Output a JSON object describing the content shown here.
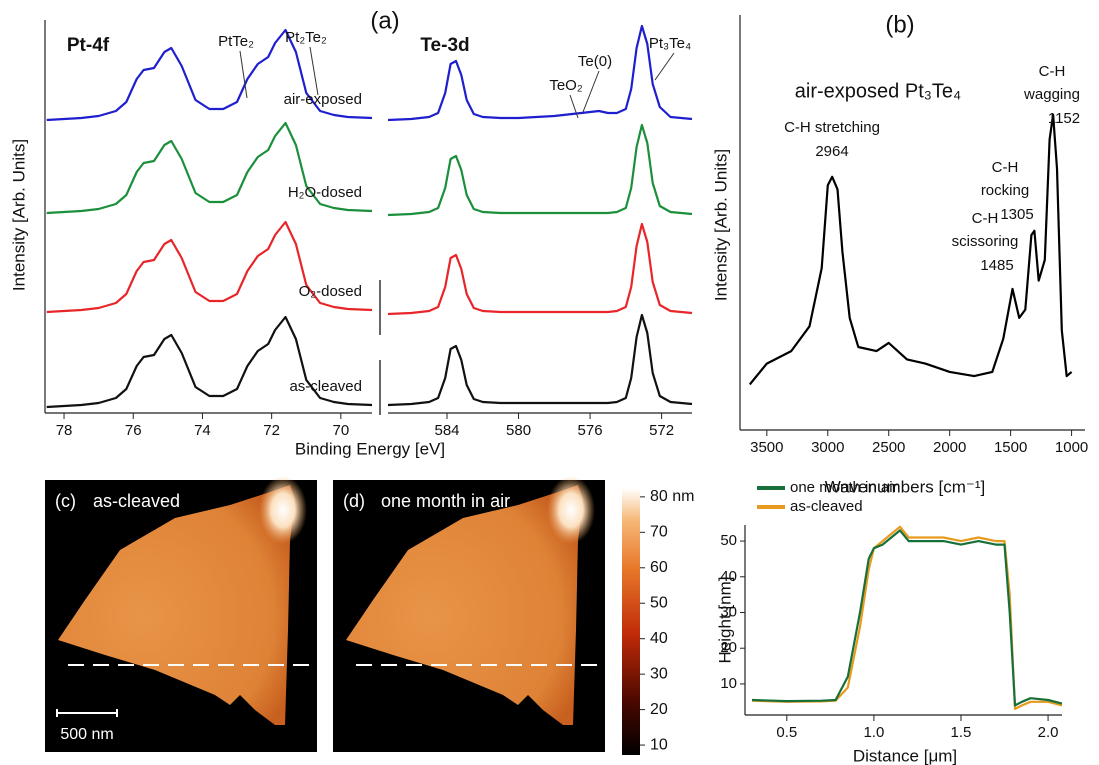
{
  "chart_data": [
    {
      "type": "line",
      "panel_label": "(a)",
      "title": "Pt-4f",
      "xlabel": "Binding Energy [eV]",
      "ylabel": "Intensity [Arb. Units]",
      "x": [
        78.5,
        78,
        77.5,
        77,
        76.5,
        76.2,
        75.9,
        75.7,
        75.4,
        75.1,
        74.9,
        74.6,
        74.2,
        73.8,
        73.4,
        73.0,
        72.7,
        72.4,
        72.1,
        71.9,
        71.6,
        71.3,
        71.0,
        70.6,
        70.2,
        69.8,
        69.1
      ],
      "xlim": [
        78.55,
        69.1
      ],
      "xticks": [
        78,
        76,
        74,
        72,
        70
      ],
      "ylim": [
        0,
        3.93
      ],
      "series": [
        {
          "name": "air-exposed",
          "color": "#1f1fcf",
          "values": [
            2.93,
            2.94,
            2.95,
            2.97,
            3.02,
            3.11,
            3.34,
            3.43,
            3.45,
            3.61,
            3.65,
            3.47,
            3.13,
            3.04,
            3.04,
            3.11,
            3.34,
            3.49,
            3.56,
            3.7,
            3.83,
            3.61,
            3.2,
            3.02,
            2.98,
            2.96,
            2.95
          ]
        },
        {
          "name": "H₂O-dosed",
          "color": "#1b8f3c",
          "values": [
            2.0,
            2.01,
            2.02,
            2.04,
            2.09,
            2.18,
            2.41,
            2.5,
            2.52,
            2.68,
            2.72,
            2.54,
            2.2,
            2.11,
            2.11,
            2.18,
            2.41,
            2.56,
            2.63,
            2.77,
            2.9,
            2.68,
            2.27,
            2.09,
            2.05,
            2.03,
            2.02
          ]
        },
        {
          "name": "O₂-dosed",
          "color": "#e8262a",
          "values": [
            1.01,
            1.02,
            1.03,
            1.05,
            1.1,
            1.19,
            1.42,
            1.51,
            1.53,
            1.69,
            1.73,
            1.55,
            1.21,
            1.12,
            1.12,
            1.19,
            1.42,
            1.57,
            1.64,
            1.78,
            1.91,
            1.69,
            1.28,
            1.1,
            1.06,
            1.04,
            1.03
          ]
        },
        {
          "name": "as-cleaved",
          "color": "#111111",
          "values": [
            0.06,
            0.07,
            0.08,
            0.1,
            0.15,
            0.24,
            0.47,
            0.56,
            0.58,
            0.74,
            0.78,
            0.6,
            0.26,
            0.17,
            0.17,
            0.24,
            0.47,
            0.62,
            0.69,
            0.83,
            0.96,
            0.74,
            0.33,
            0.15,
            0.11,
            0.09,
            0.08
          ]
        }
      ],
      "annotations": [
        "PtTe₂",
        "Pt₂Te₂"
      ]
    },
    {
      "type": "line",
      "title": "Te-3d",
      "x": [
        587.3,
        586,
        585,
        584.5,
        584.1,
        583.8,
        583.5,
        583.2,
        582.9,
        582.5,
        582,
        581,
        580,
        579,
        578,
        577,
        576,
        575.5,
        575,
        574.5,
        574,
        573.7,
        573.4,
        573.1,
        572.8,
        572.5,
        572.1,
        571.5,
        570.3
      ],
      "xlim": [
        587.3,
        570.3
      ],
      "xticks": [
        584,
        580,
        576,
        572
      ],
      "ylim": [
        0,
        3.93
      ],
      "series": [
        {
          "color": "#1f1fcf",
          "values": [
            2.93,
            2.94,
            2.96,
            3.0,
            3.2,
            3.49,
            3.52,
            3.38,
            3.13,
            2.99,
            2.96,
            2.95,
            2.95,
            2.96,
            2.97,
            2.99,
            3.01,
            3.02,
            3.0,
            3.0,
            3.04,
            3.24,
            3.65,
            3.87,
            3.69,
            3.29,
            3.06,
            2.96,
            2.94
          ]
        },
        {
          "color": "#1b8f3c",
          "values": [
            1.98,
            1.99,
            2.01,
            2.05,
            2.25,
            2.54,
            2.57,
            2.43,
            2.18,
            2.04,
            2.01,
            2.0,
            2.0,
            2.0,
            2.0,
            2.0,
            2.0,
            2.0,
            2.0,
            2.01,
            2.05,
            2.25,
            2.66,
            2.88,
            2.7,
            2.3,
            2.07,
            2.01,
            1.99
          ]
        },
        {
          "color": "#e8262a",
          "values": [
            0.99,
            1.0,
            1.02,
            1.06,
            1.26,
            1.55,
            1.58,
            1.44,
            1.19,
            1.05,
            1.02,
            1.01,
            1.01,
            1.01,
            1.01,
            1.01,
            1.01,
            1.01,
            1.01,
            1.02,
            1.06,
            1.26,
            1.67,
            1.89,
            1.71,
            1.31,
            1.08,
            1.02,
            1.0
          ]
        },
        {
          "color": "#111111",
          "values": [
            0.08,
            0.09,
            0.11,
            0.15,
            0.35,
            0.64,
            0.67,
            0.53,
            0.28,
            0.14,
            0.11,
            0.1,
            0.1,
            0.1,
            0.1,
            0.1,
            0.1,
            0.1,
            0.1,
            0.11,
            0.15,
            0.35,
            0.76,
            0.98,
            0.8,
            0.4,
            0.17,
            0.11,
            0.09
          ]
        }
      ],
      "annotations": [
        "TeO₂",
        "Te(0)",
        "Pt₃Te₄"
      ]
    },
    {
      "type": "line",
      "panel_label": "(b)",
      "title": "air-exposed Pt₃Te₄",
      "xlabel": "Wavenumbers [cm⁻¹]",
      "ylabel": "Intensity [Arb. Units]",
      "x": [
        3640,
        3500,
        3300,
        3150,
        3050,
        3000,
        2964,
        2920,
        2880,
        2820,
        2750,
        2600,
        2500,
        2350,
        2200,
        2000,
        1800,
        1650,
        1560,
        1485,
        1430,
        1380,
        1330,
        1305,
        1270,
        1220,
        1180,
        1152,
        1120,
        1080,
        1040,
        1000
      ],
      "xlim": [
        3720,
        890
      ],
      "xticks": [
        3500,
        3000,
        2500,
        2000,
        1500,
        1000
      ],
      "ylim": [
        0,
        1
      ],
      "series": [
        {
          "color": "#000000",
          "values": [
            0.11,
            0.16,
            0.19,
            0.25,
            0.39,
            0.59,
            0.61,
            0.58,
            0.43,
            0.27,
            0.2,
            0.19,
            0.21,
            0.17,
            0.16,
            0.14,
            0.13,
            0.14,
            0.22,
            0.34,
            0.27,
            0.29,
            0.47,
            0.48,
            0.36,
            0.41,
            0.7,
            0.76,
            0.63,
            0.24,
            0.13,
            0.14
          ]
        }
      ],
      "peaks": [
        {
          "lines": [
            "C-H stretching"
          ],
          "wavenumber": 2964
        },
        {
          "lines": [
            "C-H",
            "scissoring"
          ],
          "wavenumber": 1485
        },
        {
          "lines": [
            "C-H",
            "rocking"
          ],
          "wavenumber": 1305
        },
        {
          "lines": [
            "C-H",
            "wagging"
          ],
          "wavenumber": 1152
        }
      ]
    },
    {
      "type": "line",
      "xlabel": "Distance [μm]",
      "ylabel": "Height [nm]",
      "x": [
        0.3,
        0.5,
        0.7,
        0.78,
        0.85,
        0.92,
        0.97,
        1.0,
        1.05,
        1.1,
        1.15,
        1.2,
        1.3,
        1.4,
        1.5,
        1.6,
        1.7,
        1.75,
        1.78,
        1.81,
        1.85,
        1.9,
        2.0,
        2.08
      ],
      "xlim": [
        0.26,
        2.08
      ],
      "xticks": [
        0.5,
        {
          "value": 1,
          "label": "1.0"
        },
        1.5,
        {
          "value": 2,
          "label": "2.0"
        }
      ],
      "ylim": [
        1.3,
        54.5
      ],
      "yticks": [
        10,
        20,
        30,
        40,
        50
      ],
      "legend": "upper left",
      "series": [
        {
          "name": "one month in air",
          "color": "#17703a",
          "values": [
            5.5,
            5.2,
            5.3,
            5.5,
            12,
            30,
            45,
            48,
            49,
            51,
            53,
            50,
            50,
            50,
            49,
            50,
            49,
            49,
            30,
            4,
            5,
            6,
            5.5,
            4.5
          ]
        },
        {
          "name": "as-cleaved",
          "color": "#e89a1e",
          "values": [
            5.3,
            5.0,
            5.1,
            5.3,
            9,
            26,
            42,
            48,
            50,
            52,
            54,
            51,
            51,
            51,
            50,
            51,
            50,
            50,
            35,
            3,
            4,
            5,
            5,
            4
          ]
        }
      ]
    }
  ],
  "afm": {
    "images": [
      {
        "label": "(c)",
        "caption": "as-cleaved"
      },
      {
        "label": "(d)",
        "caption": "one month in air"
      }
    ],
    "scale_bar": "500 nm",
    "colorbar": {
      "clim": [
        7.2,
        82.5
      ],
      "ticks": [
        {
          "value": 80,
          "label": "80 nm"
        },
        70,
        60,
        50,
        40,
        30,
        20,
        10
      ]
    }
  }
}
